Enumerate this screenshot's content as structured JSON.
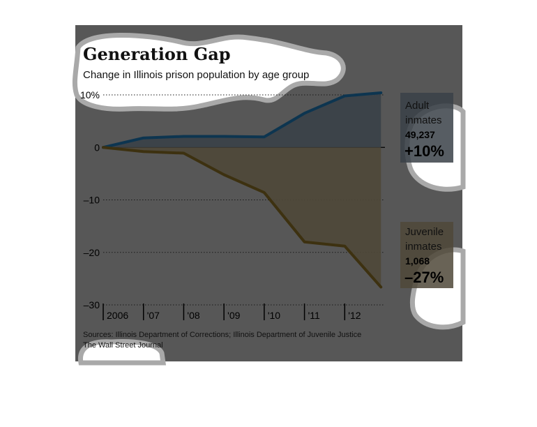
{
  "chart_data": {
    "type": "area",
    "title": "Generation Gap",
    "subtitle": "Change in Illinois prison population by age group",
    "x": [
      "2006",
      "'07",
      "'08",
      "'09",
      "'10",
      "'11",
      "'12"
    ],
    "x_values": [
      2006.0,
      2007.0,
      2008.0,
      2009.0,
      2010.0,
      2011.0,
      2012.0,
      2012.9
    ],
    "yticks": [
      10,
      0,
      -10,
      -20,
      -30
    ],
    "ytick_labels": [
      "10%",
      "0",
      "–10",
      "–20",
      "–30"
    ],
    "ylim": [
      -30,
      10
    ],
    "xlim": [
      2006.0,
      2013.0
    ],
    "series": [
      {
        "name": "Adult inmates",
        "values": [
          0.0,
          1.8,
          2.1,
          2.1,
          2.0,
          6.5,
          9.8,
          10.4
        ],
        "latest_value": "49,237",
        "change": "+10%",
        "color": "#0d3550",
        "fill": "#3a4148"
      },
      {
        "name": "Juvenile inmates",
        "values": [
          0.0,
          -0.8,
          -1.1,
          -5.2,
          -8.6,
          -18.0,
          -18.8,
          -26.6
        ],
        "latest_value": "1,068",
        "change": "–27%",
        "color": "#3d3110",
        "fill": "#4f4838"
      }
    ],
    "legend": [
      {
        "line1": "Adult",
        "line2": "inmates",
        "value": "49,237",
        "change": "+10%"
      },
      {
        "line1": "Juvenile",
        "line2": "inmates",
        "value": "1,068",
        "change": "–27%"
      }
    ],
    "source": "Sources: Illinois Department of Corrections; Illinois Department of Juvenile Justice",
    "credit": "The Wall Street Journal",
    "grid": true,
    "colors": {
      "background": "#575757",
      "page": "#ffffff",
      "blob": "#ffffff",
      "blob_edge": "#a9a9a9"
    }
  }
}
